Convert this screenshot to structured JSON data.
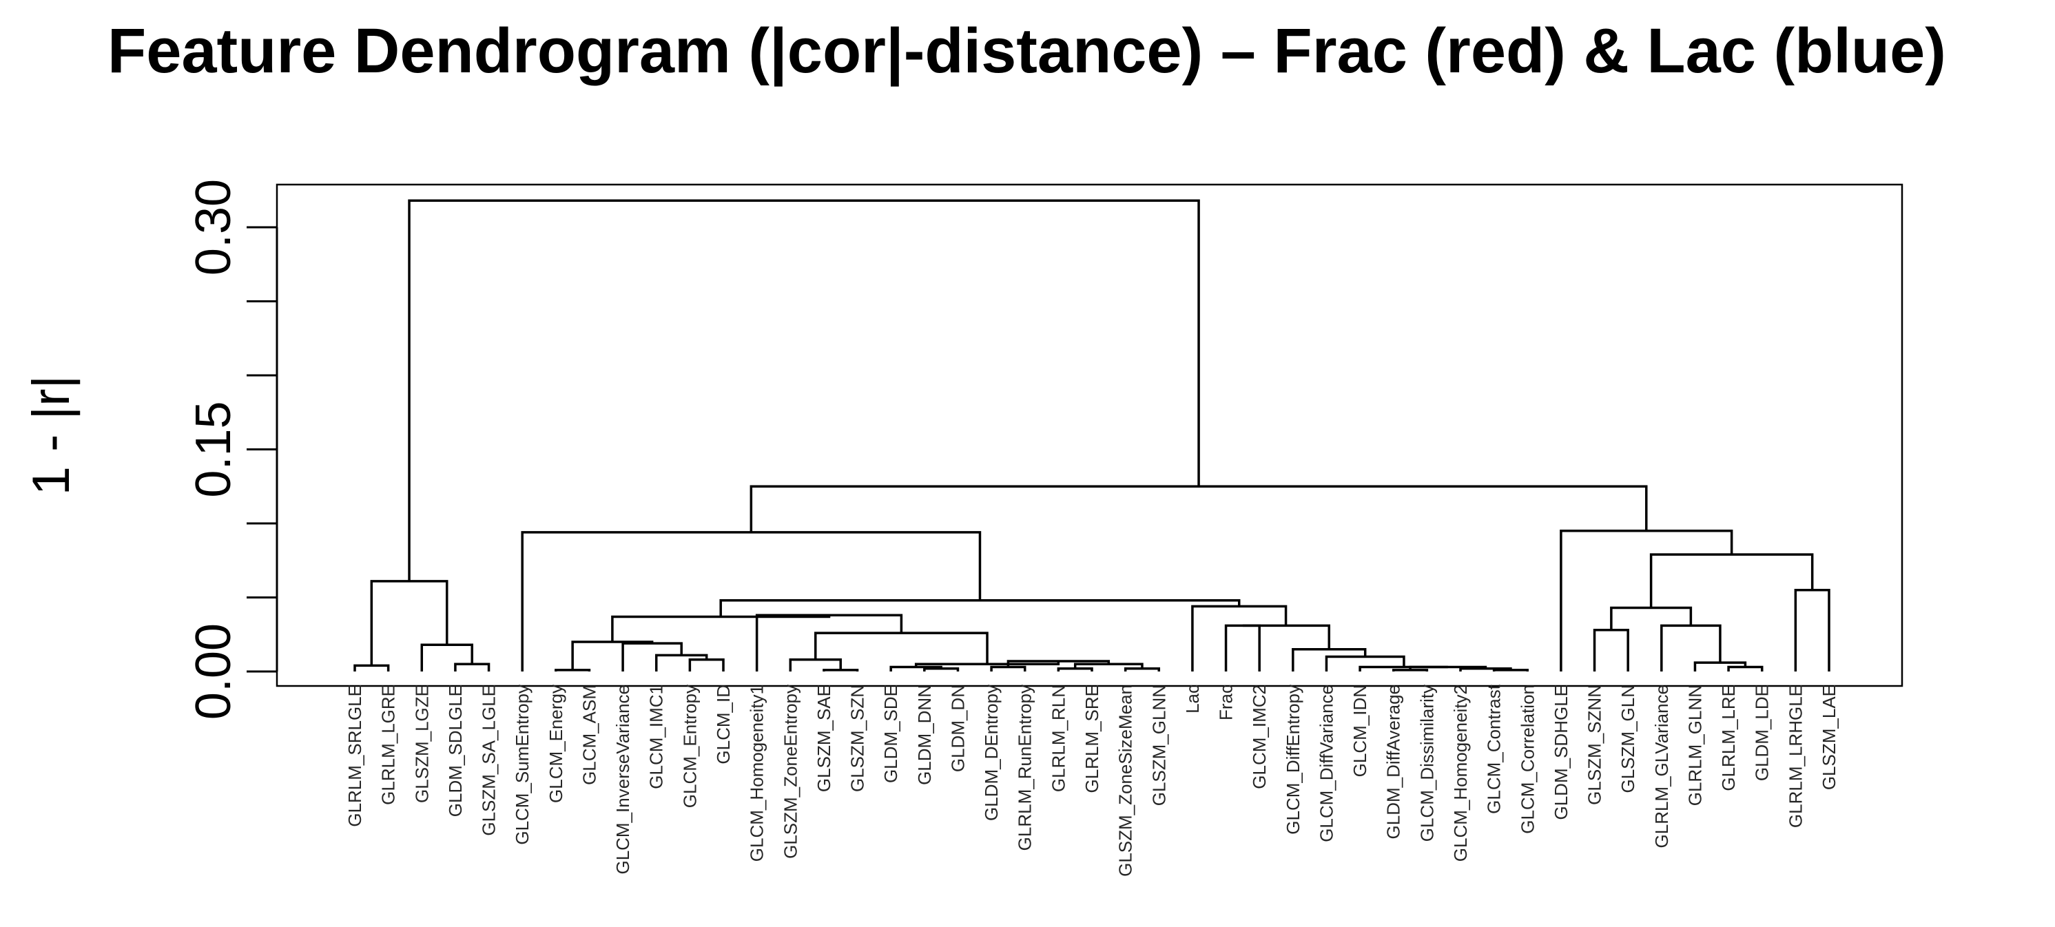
{
  "chart_data": {
    "type": "dendrogram",
    "title": "Feature Dendrogram (|cor|-distance) – Frac (red) & Lac (blue)",
    "xlabel": "",
    "ylabel": "1 - |r|",
    "ylim": [
      0,
      0.33
    ],
    "yticks": [
      "0.00",
      "0.15",
      "0.30"
    ],
    "ytick_values": [
      0,
      0.15,
      0.3
    ],
    "leaves": [
      "GLRLM_SRLGLE",
      "GLRLM_LGRE",
      "GLSZM_LGZE",
      "GLDM_SDLGLE",
      "GLSZM_SA_LGLE",
      "GLCM_SumEntropy",
      "GLCM_Energy",
      "GLCM_ASM",
      "GLCM_InverseVariance",
      "GLCM_IMC1",
      "GLCM_Entropy",
      "GLCM_ID",
      "GLCM_Homogeneity1",
      "GLSZM_ZoneEntropy",
      "GLSZM_SAE",
      "GLSZM_SZN",
      "GLDM_SDE",
      "GLDM_DNN",
      "GLDM_DN",
      "GLDM_DEntropy",
      "GLRLM_RunEntropy",
      "GLRLM_RLN",
      "GLRLM_SRE",
      "GLSZM_ZoneSizeMean",
      "GLSZM_GLNN",
      "Lac",
      "Frac",
      "GLCM_IMC2",
      "GLCM_DiffEntropy",
      "GLCM_DiffVariance",
      "GLCM_IDN",
      "GLDM_DiffAverage",
      "GLCM_Dissimilarity",
      "GLCM_Homogeneity2",
      "GLCM_Contrast",
      "GLCM_Correlation",
      "GLDM_SDHGLE",
      "GLSZM_SZNN",
      "GLSZM_GLN",
      "GLRLM_GLVariance",
      "GLRLM_GLNN",
      "GLRLM_LRE",
      "GLDM_LDE",
      "GLRLM_LRHGLE",
      "GLSZM_LAE"
    ],
    "highlight": {
      "Lac": "#1f78b4",
      "Frac": "#e8601c"
    },
    "default_label_color": "#262626",
    "merges": [
      {
        "a": "GLRLM_SRLGLE",
        "b": "GLRLM_LGRE",
        "h": 0.004,
        "id": "m1"
      },
      {
        "a": "GLDM_SDLGLE",
        "b": "GLSZM_SA_LGLE",
        "h": 0.005,
        "id": "m2"
      },
      {
        "a": "GLSZM_LGZE",
        "b": "m2",
        "h": 0.018,
        "id": "m3"
      },
      {
        "a": "m1",
        "b": "m3",
        "h": 0.061,
        "id": "m4"
      },
      {
        "a": "GLCM_Energy",
        "b": "GLCM_ASM",
        "h": 0.001,
        "id": "m5"
      },
      {
        "a": "GLCM_Entropy",
        "b": "GLCM_ID",
        "h": 0.008,
        "id": "m6"
      },
      {
        "a": "GLCM_IMC1",
        "b": "m6",
        "h": 0.011,
        "id": "m7"
      },
      {
        "a": "GLCM_InverseVariance",
        "b": "m7",
        "h": 0.019,
        "id": "m8"
      },
      {
        "a": "m5",
        "b": "m8",
        "h": 0.02,
        "id": "m9"
      },
      {
        "a": "GLSZM_SAE",
        "b": "GLSZM_SZN",
        "h": 0.001,
        "id": "m10"
      },
      {
        "a": "GLSZM_ZoneEntropy",
        "b": "m10",
        "h": 0.008,
        "id": "m11"
      },
      {
        "a": "GLDM_DNN",
        "b": "GLDM_DN",
        "h": 0.002,
        "id": "m12"
      },
      {
        "a": "GLDM_SDE",
        "b": "m12",
        "h": 0.003,
        "id": "m13"
      },
      {
        "a": "GLDM_DEntropy",
        "b": "GLRLM_RunEntropy",
        "h": 0.003,
        "id": "m14"
      },
      {
        "a": "GLRLM_RLN",
        "b": "GLRLM_SRE",
        "h": 0.002,
        "id": "m15"
      },
      {
        "a": "GLSZM_ZoneSizeMean",
        "b": "GLSZM_GLNN",
        "h": 0.002,
        "id": "m16"
      },
      {
        "a": "m15",
        "b": "m16",
        "h": 0.005,
        "id": "m17"
      },
      {
        "a": "m14",
        "b": "m17",
        "h": 0.007,
        "id": "m18"
      },
      {
        "a": "m13",
        "b": "m18",
        "h": 0.005,
        "id": "m19"
      },
      {
        "a": "m11",
        "b": "m19",
        "h": 0.026,
        "id": "m20"
      },
      {
        "a": "GLCM_Homogeneity1",
        "b": "m20",
        "h": 0.038,
        "id": "m21"
      },
      {
        "a": "m9",
        "b": "m21",
        "h": 0.037,
        "id": "m22"
      },
      {
        "a": "GLCM_Contrast",
        "b": "GLCM_Correlation",
        "h": 0.001,
        "id": "m23"
      },
      {
        "a": "GLCM_Homogeneity2",
        "b": "m23",
        "h": 0.002,
        "id": "m24"
      },
      {
        "a": "GLDM_DiffAverage",
        "b": "GLCM_Dissimilarity",
        "h": 0.001,
        "id": "m25"
      },
      {
        "a": "m25",
        "b": "m24",
        "h": 0.003,
        "id": "m26"
      },
      {
        "a": "GLCM_IDN",
        "b": "m26",
        "h": 0.003,
        "id": "m27"
      },
      {
        "a": "GLCM_DiffVariance",
        "b": "m27",
        "h": 0.01,
        "id": "m28"
      },
      {
        "a": "GLCM_DiffEntropy",
        "b": "m28",
        "h": 0.015,
        "id": "m29"
      },
      {
        "a": "Frac",
        "b": "GLCM_IMC2",
        "h": 0.031,
        "id": "m30"
      },
      {
        "a": "m30",
        "b": "m29",
        "h": 0.031,
        "id": "m31"
      },
      {
        "a": "Lac",
        "b": "m31",
        "h": 0.044,
        "id": "m32"
      },
      {
        "a": "m22",
        "b": "m32",
        "h": 0.048,
        "id": "m33"
      },
      {
        "a": "GLCM_SumEntropy",
        "b": "m33",
        "h": 0.094,
        "id": "m34"
      },
      {
        "a": "GLSZM_SZNN",
        "b": "GLSZM_GLN",
        "h": 0.028,
        "id": "m35"
      },
      {
        "a": "GLRLM_LRE",
        "b": "GLDM_LDE",
        "h": 0.003,
        "id": "m36"
      },
      {
        "a": "GLRLM_GLNN",
        "b": "m36",
        "h": 0.006,
        "id": "m37"
      },
      {
        "a": "GLRLM_GLVariance",
        "b": "m37",
        "h": 0.031,
        "id": "m38"
      },
      {
        "a": "m35",
        "b": "m38",
        "h": 0.043,
        "id": "m39"
      },
      {
        "a": "GLRLM_LRHGLE",
        "b": "GLSZM_LAE",
        "h": 0.055,
        "id": "m40"
      },
      {
        "a": "m39",
        "b": "m40",
        "h": 0.079,
        "id": "m41"
      },
      {
        "a": "GLDM_SDHGLE",
        "b": "m41",
        "h": 0.095,
        "id": "m42"
      },
      {
        "a": "m34",
        "b": "m42",
        "h": 0.125,
        "id": "m43"
      },
      {
        "a": "m4",
        "b": "m43",
        "h": 0.318,
        "id": "m44"
      }
    ]
  }
}
